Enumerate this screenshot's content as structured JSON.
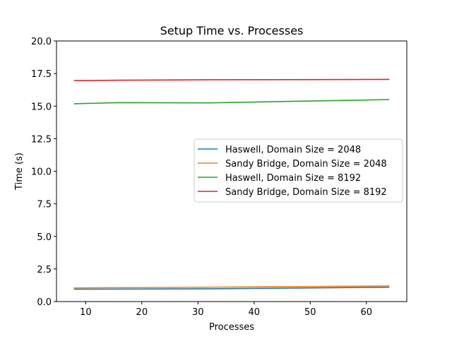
{
  "chart_data": {
    "type": "line",
    "title": "Setup Time vs. Processes",
    "xlabel": "Processes",
    "ylabel": "Time (s)",
    "xlim": [
      4.8,
      67.2
    ],
    "ylim": [
      0,
      20
    ],
    "xticks": [
      10,
      20,
      30,
      40,
      50,
      60
    ],
    "yticks": [
      0.0,
      2.5,
      5.0,
      7.5,
      10.0,
      12.5,
      15.0,
      17.5,
      20.0
    ],
    "xtick_labels": [
      "10",
      "20",
      "30",
      "40",
      "50",
      "60"
    ],
    "ytick_labels": [
      "0.0",
      "2.5",
      "5.0",
      "7.5",
      "10.0",
      "12.5",
      "15.0",
      "17.5",
      "20.0"
    ],
    "grid": false,
    "legend_position": "center-right",
    "x": [
      8,
      16,
      32,
      64
    ],
    "series": [
      {
        "name": "Haswell, Domain Size = 2048",
        "color": "#1f77b4",
        "values": [
          0.95,
          0.96,
          0.98,
          1.1
        ]
      },
      {
        "name": "Sandy Bridge, Domain Size = 2048",
        "color": "#ff7f0e",
        "values": [
          1.05,
          1.07,
          1.1,
          1.2
        ]
      },
      {
        "name": "Haswell, Domain Size = 8192",
        "color": "#2ca02c",
        "values": [
          15.18,
          15.27,
          15.25,
          15.5
        ]
      },
      {
        "name": "Sandy Bridge, Domain Size = 8192",
        "color": "#d62728",
        "values": [
          16.96,
          16.99,
          17.02,
          17.05
        ]
      }
    ]
  }
}
